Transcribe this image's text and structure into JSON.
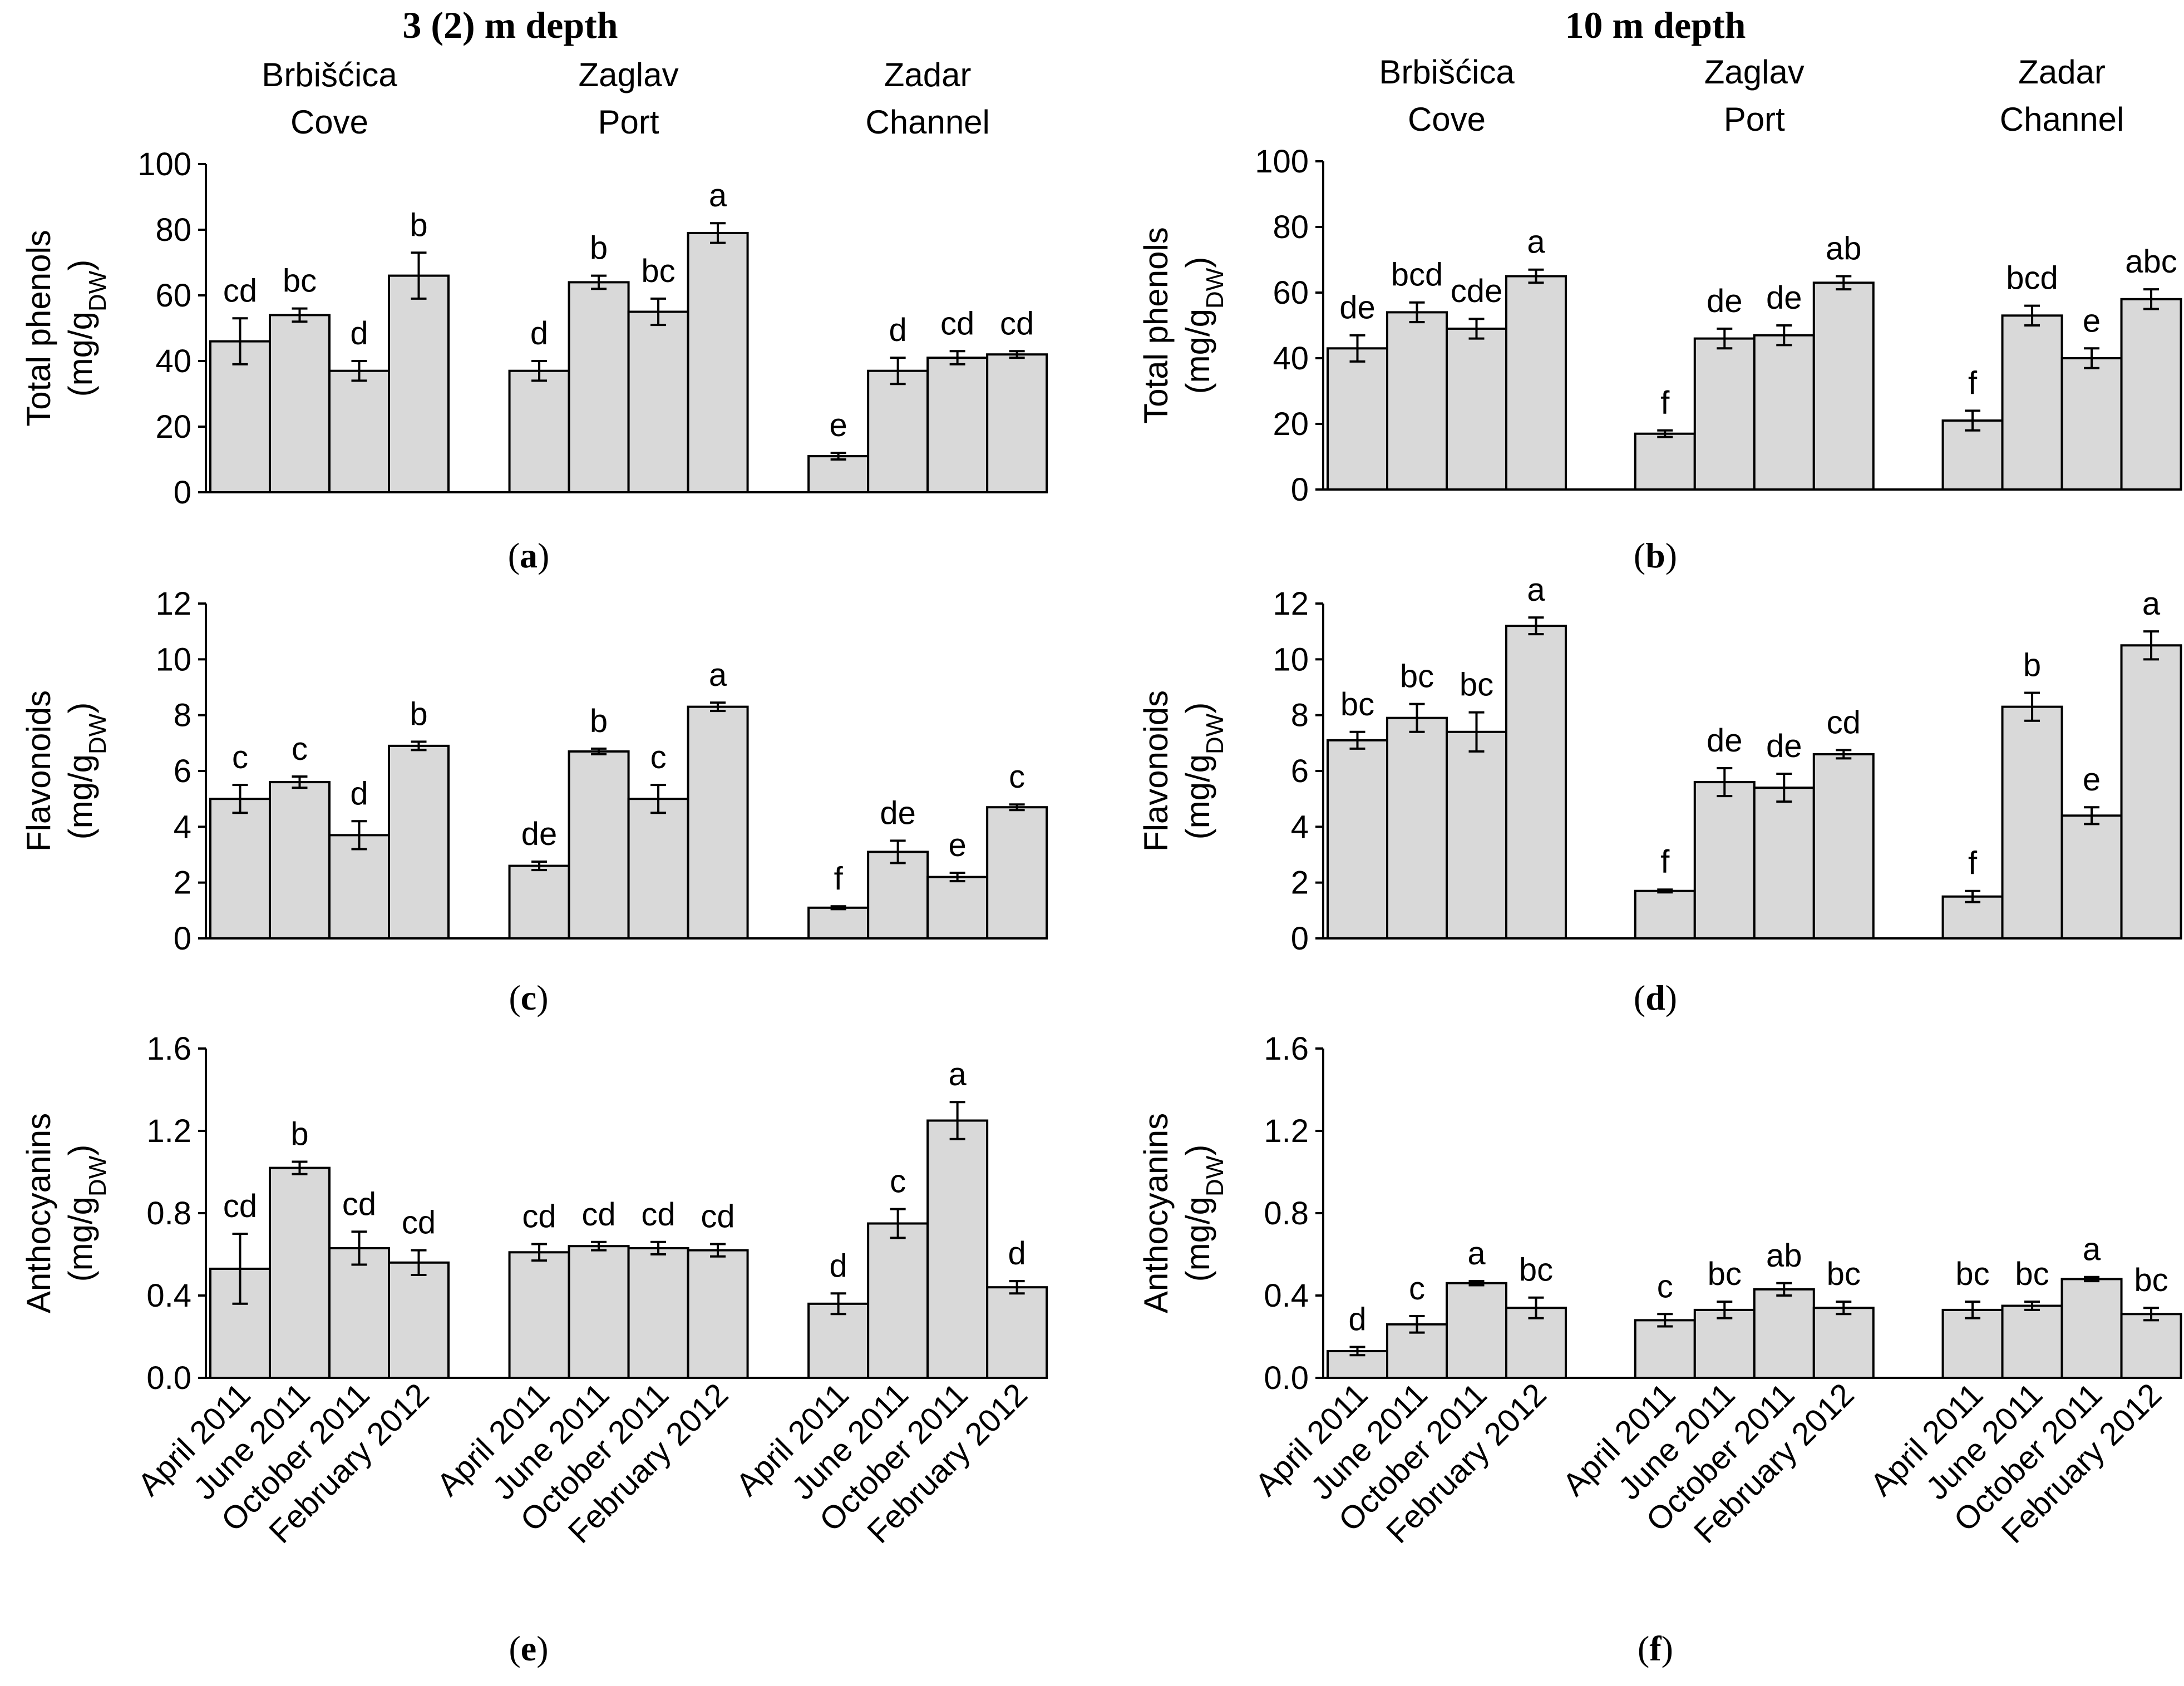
{
  "depth_titles": {
    "left": "3 (2) m depth",
    "right": "10 m depth"
  },
  "panel_labels": [
    "(a)",
    "(b)",
    "(c)",
    "(d)",
    "(e)",
    "(f)"
  ],
  "chart_data": [
    {
      "id": "a",
      "type": "bar",
      "depth": "3 (2) m depth",
      "ylabel": "Total phenols",
      "yunit_base": "(mg/g",
      "yunit_sub": "DW",
      "yunit_end": ")",
      "ylim": [
        0,
        100
      ],
      "yticks": [
        "0",
        "20",
        "40",
        "60",
        "80",
        "100"
      ],
      "groups": [
        {
          "site": [
            "Brbišćica",
            "Cove"
          ],
          "values": [
            46,
            54,
            37,
            66
          ],
          "errors": [
            7,
            2,
            3,
            7
          ],
          "letters": [
            "cd",
            "bc",
            "d",
            "b"
          ]
        },
        {
          "site": [
            "Zaglav",
            "Port"
          ],
          "values": [
            37,
            64,
            55,
            79
          ],
          "errors": [
            3,
            2,
            4,
            3
          ],
          "letters": [
            "d",
            "b",
            "bc",
            "a"
          ]
        },
        {
          "site": [
            "Zadar",
            "Channel"
          ],
          "values": [
            11,
            37,
            41,
            42
          ],
          "errors": [
            1,
            4,
            2,
            1
          ],
          "letters": [
            "e",
            "d",
            "cd",
            "cd"
          ]
        }
      ]
    },
    {
      "id": "b",
      "type": "bar",
      "depth": "10 m depth",
      "ylabel": "Total phenols",
      "yunit_base": "(mg/g",
      "yunit_sub": "DW",
      "yunit_end": ")",
      "ylim": [
        0,
        100
      ],
      "yticks": [
        "0",
        "20",
        "40",
        "60",
        "80",
        "100"
      ],
      "groups": [
        {
          "site": [
            "Brbišćica",
            "Cove"
          ],
          "values": [
            43,
            54,
            49,
            65
          ],
          "errors": [
            4,
            3,
            3,
            2
          ],
          "letters": [
            "de",
            "bcd",
            "cde",
            "a"
          ]
        },
        {
          "site": [
            "Zaglav",
            "Port"
          ],
          "values": [
            17,
            46,
            47,
            63
          ],
          "errors": [
            1,
            3,
            3,
            2
          ],
          "letters": [
            "f",
            "de",
            "de",
            "ab"
          ]
        },
        {
          "site": [
            "Zadar",
            "Channel"
          ],
          "values": [
            21,
            53,
            40,
            58
          ],
          "errors": [
            3,
            3,
            3,
            3
          ],
          "letters": [
            "f",
            "bcd",
            "e",
            "abc"
          ]
        }
      ]
    },
    {
      "id": "c",
      "type": "bar",
      "depth": "3 (2) m depth",
      "ylabel": "Flavonoids",
      "yunit_base": "(mg/g",
      "yunit_sub": "DW",
      "yunit_end": ")",
      "ylim": [
        0,
        12
      ],
      "yticks": [
        "0",
        "2",
        "4",
        "6",
        "8",
        "10",
        "12"
      ],
      "groups": [
        {
          "site": [
            "",
            ""
          ],
          "values": [
            5.0,
            5.6,
            3.7,
            6.9
          ],
          "errors": [
            0.5,
            0.2,
            0.5,
            0.15
          ],
          "letters": [
            "c",
            "c",
            "d",
            "b"
          ]
        },
        {
          "site": [
            "",
            ""
          ],
          "values": [
            2.6,
            6.7,
            5.0,
            8.3
          ],
          "errors": [
            0.15,
            0.1,
            0.5,
            0.15
          ],
          "letters": [
            "de",
            "b",
            "c",
            "a"
          ]
        },
        {
          "site": [
            "",
            ""
          ],
          "values": [
            1.1,
            3.1,
            2.2,
            4.7
          ],
          "errors": [
            0.05,
            0.4,
            0.15,
            0.1
          ],
          "letters": [
            "f",
            "de",
            "e",
            "c"
          ]
        }
      ]
    },
    {
      "id": "d",
      "type": "bar",
      "depth": "10 m depth",
      "ylabel": "Flavonoids",
      "yunit_base": "(mg/g",
      "yunit_sub": "DW",
      "yunit_end": ")",
      "ylim": [
        0,
        12
      ],
      "yticks": [
        "0",
        "2",
        "4",
        "6",
        "8",
        "10",
        "12"
      ],
      "groups": [
        {
          "site": [
            "",
            ""
          ],
          "values": [
            7.1,
            7.9,
            7.4,
            11.2
          ],
          "errors": [
            0.3,
            0.5,
            0.7,
            0.3
          ],
          "letters": [
            "bc",
            "bc",
            "bc",
            "a"
          ]
        },
        {
          "site": [
            "",
            ""
          ],
          "values": [
            1.7,
            5.6,
            5.4,
            6.6
          ],
          "errors": [
            0.05,
            0.5,
            0.5,
            0.15
          ],
          "letters": [
            "f",
            "de",
            "de",
            "cd"
          ]
        },
        {
          "site": [
            "",
            ""
          ],
          "values": [
            1.5,
            8.3,
            4.4,
            10.5
          ],
          "errors": [
            0.2,
            0.5,
            0.3,
            0.5
          ],
          "letters": [
            "f",
            "b",
            "e",
            "a"
          ]
        }
      ]
    },
    {
      "id": "e",
      "type": "bar",
      "depth": "3 (2) m depth",
      "ylabel": "Anthocyanins",
      "yunit_base": "(mg/g",
      "yunit_sub": "DW",
      "yunit_end": ")",
      "ylim": [
        0,
        1.6
      ],
      "yticks": [
        "0.0",
        "0.4",
        "0.8",
        "1.2",
        "1.6"
      ],
      "categories": [
        "April 2011",
        "June 2011",
        "October 2011",
        "February 2012"
      ],
      "groups": [
        {
          "site": [
            "",
            ""
          ],
          "values": [
            0.53,
            1.02,
            0.63,
            0.56
          ],
          "errors": [
            0.17,
            0.03,
            0.08,
            0.06
          ],
          "letters": [
            "cd",
            "b",
            "cd",
            "cd"
          ]
        },
        {
          "site": [
            "",
            ""
          ],
          "values": [
            0.61,
            0.64,
            0.63,
            0.62
          ],
          "errors": [
            0.04,
            0.02,
            0.03,
            0.03
          ],
          "letters": [
            "cd",
            "cd",
            "cd",
            "cd"
          ]
        },
        {
          "site": [
            "",
            ""
          ],
          "values": [
            0.36,
            0.75,
            1.25,
            0.44
          ],
          "errors": [
            0.05,
            0.07,
            0.09,
            0.03
          ],
          "letters": [
            "d",
            "c",
            "a",
            "d"
          ]
        }
      ]
    },
    {
      "id": "f",
      "type": "bar",
      "depth": "10 m depth",
      "ylabel": "Anthocyanins",
      "yunit_base": "(mg/g",
      "yunit_sub": "DW",
      "yunit_end": ")",
      "ylim": [
        0,
        1.6
      ],
      "yticks": [
        "0.0",
        "0.4",
        "0.8",
        "1.2",
        "1.6"
      ],
      "categories": [
        "April 2011",
        "June 2011",
        "October 2011",
        "February 2012"
      ],
      "groups": [
        {
          "site": [
            "",
            ""
          ],
          "values": [
            0.13,
            0.26,
            0.46,
            0.34
          ],
          "errors": [
            0.02,
            0.04,
            0.01,
            0.05
          ],
          "letters": [
            "d",
            "c",
            "a",
            "bc"
          ]
        },
        {
          "site": [
            "",
            ""
          ],
          "values": [
            0.28,
            0.33,
            0.43,
            0.34
          ],
          "errors": [
            0.03,
            0.04,
            0.03,
            0.03
          ],
          "letters": [
            "c",
            "bc",
            "ab",
            "bc"
          ]
        },
        {
          "site": [
            "",
            ""
          ],
          "values": [
            0.33,
            0.35,
            0.48,
            0.31
          ],
          "errors": [
            0.04,
            0.02,
            0.01,
            0.03
          ],
          "letters": [
            "bc",
            "bc",
            "a",
            "bc"
          ]
        }
      ]
    }
  ]
}
